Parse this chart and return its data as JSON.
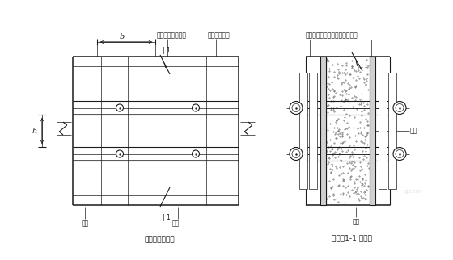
{
  "bg_color": "#ffffff",
  "line_color": "#1a1a1a",
  "title1": "墙模板正立面图",
  "title2": "墙模板1-1 剖面图",
  "label_b": "b",
  "label_h": "h",
  "label_11": "| 1",
  "label_mianban": "面板",
  "label_luoshuan": "螺栓",
  "label_mianban2": "面板",
  "label_luoshuan2": "螺栓",
  "label_zhuleng_left": "主楞（圆形钢管）",
  "label_cileng_left": "次楞（方木）",
  "label_zhuleng_right": "主楞（圆形钢管）次楞（方木）",
  "font_size_label": 5.5,
  "font_size_title": 6.5
}
